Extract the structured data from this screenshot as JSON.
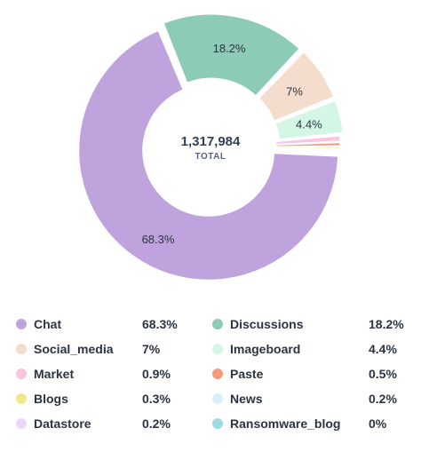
{
  "chart_data": {
    "type": "pie",
    "center_value": "1,317,984",
    "center_label": "TOTAL",
    "series": [
      {
        "name": "Chat",
        "value": 68.3,
        "label": "68.3%",
        "color": "#bfa3dc"
      },
      {
        "name": "Discussions",
        "value": 18.2,
        "label": "18.2%",
        "color": "#8ccbb6"
      },
      {
        "name": "Social_media",
        "value": 7,
        "label": "7%",
        "color": "#f4ddcd"
      },
      {
        "name": "Imageboard",
        "value": 4.4,
        "label": "4.4%",
        "color": "#d4f6e5"
      },
      {
        "name": "Market",
        "value": 0.9,
        "label": "0.9%",
        "color": "#f8c4de"
      },
      {
        "name": "Paste",
        "value": 0.5,
        "label": "0.5%",
        "color": "#f59a7a"
      },
      {
        "name": "Blogs",
        "value": 0.3,
        "label": "0.3%",
        "color": "#f0e88a"
      },
      {
        "name": "News",
        "value": 0.2,
        "label": "0.2%",
        "color": "#d8eefa"
      },
      {
        "name": "Datastore",
        "value": 0.2,
        "label": "0.2%",
        "color": "#ead8fa"
      },
      {
        "name": "Ransomware_blog",
        "value": 0,
        "label": "0%",
        "color": "#9adbe4"
      }
    ],
    "slice_labels_shown": [
      "Chat",
      "Discussions",
      "Social_media",
      "Imageboard"
    ],
    "legend_placement": "bottom"
  }
}
